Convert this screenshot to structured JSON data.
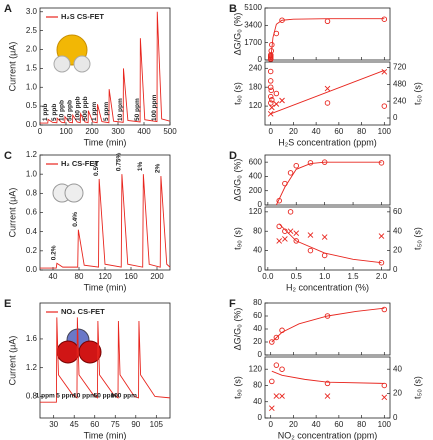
{
  "chart_data": [
    {
      "type": "line",
      "label": "A",
      "xlabel": "Time (min)",
      "ylabel": "Current (μA)",
      "xlim": [
        0,
        500
      ],
      "xticks": [
        0,
        100,
        200,
        300,
        400,
        500
      ],
      "ylim": [
        0,
        3.1
      ],
      "yticks": [
        {
          "value": 0,
          "label": "0.0"
        },
        {
          "value": 0.5,
          "label": "0.5"
        },
        {
          "value": 1,
          "label": "1.0"
        },
        {
          "value": 1.5,
          "label": "1.5"
        },
        {
          "value": 2,
          "label": "2.0"
        },
        {
          "value": 2.5,
          "label": "2.5"
        },
        {
          "value": 3,
          "label": "3.0"
        }
      ],
      "annotations": [
        "1 ppb",
        "5 ppb",
        "10 ppb",
        "50 ppb",
        "100 ppb",
        "500 ppb",
        "1 ppm",
        "5 ppm",
        "10 ppm",
        "50 ppm",
        "100 ppm"
      ],
      "series": [
        {
          "name": "H₂S CS-FET",
          "color": "#e8261f",
          "style": "line",
          "x": [
            0,
            30,
            31,
            48,
            65,
            66,
            83,
            95,
            96,
            113,
            125,
            126,
            143,
            155,
            156,
            173,
            185,
            186,
            203,
            220,
            221,
            238,
            265,
            266,
            283,
            320,
            321,
            338,
            385,
            386,
            403,
            450,
            451,
            468,
            500
          ],
          "values": [
            0.05,
            0.05,
            0.15,
            0.07,
            0.06,
            0.18,
            0.07,
            0.06,
            0.22,
            0.07,
            0.06,
            0.26,
            0.08,
            0.06,
            0.3,
            0.08,
            0.06,
            0.38,
            0.08,
            0.06,
            0.55,
            0.09,
            0.06,
            0.95,
            0.1,
            0.07,
            1.5,
            0.12,
            0.08,
            2.3,
            0.14,
            0.09,
            3.0,
            0.16,
            0.1
          ]
        }
      ]
    },
    {
      "type": "scatter",
      "label": "B",
      "ylabel": "ΔG/G₀ (%)",
      "xlim": [
        -5,
        105
      ],
      "xticks": [
        0,
        20,
        40,
        60,
        80,
        100
      ],
      "ylim": [
        0,
        5100
      ],
      "yticks": [
        0,
        1700,
        3400,
        5100
      ],
      "series": [
        {
          "color": "#e8261f",
          "style": "marker",
          "marker": "circle",
          "x": [
            0,
            0.001,
            0.005,
            0.01,
            0.05,
            0.1,
            0.5,
            1,
            5,
            10,
            50,
            100
          ],
          "values": [
            50,
            100,
            200,
            300,
            400,
            500,
            900,
            1500,
            2600,
            3900,
            3800,
            4000
          ]
        },
        {
          "color": "#e8261f",
          "style": "line",
          "x": [
            0,
            2,
            5,
            10,
            20,
            50,
            100
          ],
          "values": [
            0,
            2200,
            3500,
            3900,
            4000,
            4050,
            4050
          ]
        }
      ]
    },
    {
      "type": "scatter",
      "xlabel": "H₂S concentration (ppm)",
      "ylabel": "t₉₀ (s)",
      "y2label": "t₅₀ (s)",
      "xlim": [
        -5,
        105
      ],
      "xticks": [
        0,
        20,
        40,
        60,
        80,
        100
      ],
      "ylim": [
        60,
        260
      ],
      "yticks": [
        120,
        180,
        240
      ],
      "y2lim": [
        -100,
        800
      ],
      "y2ticks": [
        0,
        240,
        480,
        720
      ],
      "series": [
        {
          "color": "#e8261f",
          "style": "marker",
          "marker": "circle",
          "x": [
            0,
            0.005,
            0.01,
            0.05,
            0.1,
            0.5,
            1,
            5,
            50,
            100
          ],
          "values": [
            230,
            200,
            180,
            150,
            130,
            170,
            140,
            160,
            130,
            120
          ]
        },
        {
          "color": "#e8261f",
          "style": "marker",
          "marker": "cross",
          "axis": "y2",
          "x": [
            0,
            1,
            5,
            10,
            50,
            100
          ],
          "values": [
            60,
            150,
            200,
            250,
            420,
            660
          ]
        },
        {
          "color": "#e8261f",
          "style": "line",
          "axis": "y2",
          "x": [
            0,
            100
          ],
          "values": [
            60,
            680
          ]
        }
      ]
    },
    {
      "type": "line",
      "label": "C",
      "xlabel": "Time (min)",
      "ylabel": "Current (μA)",
      "xlim": [
        20,
        220
      ],
      "xticks": [
        40,
        80,
        120,
        160,
        200
      ],
      "ylim": [
        0,
        1.2
      ],
      "yticks": [
        {
          "value": 0,
          "label": "0.0"
        },
        0.2,
        0.4,
        0.6,
        0.8,
        {
          "value": 1,
          "label": "1.0"
        },
        1.2
      ],
      "annotations": [
        "0.2%",
        "0.4%",
        "0.5%",
        "0.75%",
        "1%",
        "2%"
      ],
      "series": [
        {
          "name": "H₂ CS-FET",
          "color": "#e8261f",
          "style": "line",
          "x": [
            20,
            45,
            46,
            55,
            78,
            79,
            88,
            110,
            111,
            120,
            145,
            146,
            155,
            178,
            179,
            188,
            205,
            206,
            215,
            220
          ],
          "values": [
            0.02,
            0.02,
            0.07,
            0.03,
            0.03,
            0.42,
            0.05,
            0.03,
            0.95,
            0.06,
            0.03,
            1.0,
            0.06,
            0.03,
            1.0,
            0.06,
            0.03,
            0.98,
            0.06,
            0.03
          ]
        }
      ]
    },
    {
      "type": "scatter",
      "label": "D",
      "ylabel": "ΔG/G₀ (%)",
      "xlim": [
        -0.05,
        2.15
      ],
      "xticks": [
        0,
        0.5,
        1,
        1.5,
        2
      ],
      "ylim": [
        0,
        700
      ],
      "yticks": [
        0,
        200,
        400,
        600
      ],
      "series": [
        {
          "color": "#e8261f",
          "style": "marker",
          "marker": "circle",
          "x": [
            0.2,
            0.3,
            0.4,
            0.5,
            0.75,
            1,
            2
          ],
          "values": [
            60,
            300,
            450,
            550,
            590,
            600,
            590
          ]
        },
        {
          "color": "#e8261f",
          "style": "line",
          "x": [
            0.15,
            0.3,
            0.5,
            0.75,
            1,
            1.5,
            2
          ],
          "values": [
            0,
            250,
            500,
            580,
            600,
            600,
            600
          ]
        }
      ]
    },
    {
      "type": "scatter",
      "xlabel": "H₂ concentration (%)",
      "ylabel": "t₉₀ (s)",
      "y2label": "t₅₀ (s)",
      "xlim": [
        -0.05,
        2.15
      ],
      "xticks": [
        {
          "value": 0,
          "label": "0.0"
        },
        {
          "value": 0.5,
          "label": "0.5"
        },
        {
          "value": 1,
          "label": "1.0"
        },
        {
          "value": 1.5,
          "label": "1.5"
        },
        {
          "value": 2,
          "label": "2.0"
        }
      ],
      "ylim": [
        0,
        130
      ],
      "yticks": [
        0,
        40,
        80,
        120
      ],
      "y2lim": [
        0,
        65
      ],
      "y2ticks": [
        0,
        20,
        40,
        60
      ],
      "series": [
        {
          "color": "#e8261f",
          "style": "marker",
          "marker": "circle",
          "x": [
            0.2,
            0.3,
            0.4,
            0.5,
            0.75,
            1,
            2
          ],
          "values": [
            90,
            80,
            120,
            60,
            40,
            30,
            15
          ]
        },
        {
          "color": "#e8261f",
          "style": "marker",
          "marker": "cross",
          "axis": "y2",
          "x": [
            0.2,
            0.3,
            0.4,
            0.5,
            0.75,
            1,
            2
          ],
          "values": [
            30,
            32,
            40,
            38,
            36,
            34,
            35
          ]
        },
        {
          "color": "#e8261f",
          "style": "line",
          "x": [
            0.2,
            0.5,
            1,
            1.5,
            2
          ],
          "values": [
            95,
            60,
            35,
            22,
            15
          ]
        }
      ]
    },
    {
      "type": "line",
      "label": "E",
      "xlabel": "Time (min)",
      "ylabel": "Current (μA)",
      "xlim": [
        20,
        115
      ],
      "xticks": [
        30,
        45,
        60,
        75,
        90,
        105
      ],
      "ylim": [
        0.5,
        2.1
      ],
      "yticks": [
        0.8,
        1.2,
        1.6
      ],
      "annotations": [
        "1 ppm",
        "5 ppm",
        "10 ppm",
        "50 ppm",
        "100 ppm"
      ],
      "series": [
        {
          "name": "NO₂ CS-FET",
          "color": "#e8261f",
          "style": "line",
          "x": [
            20,
            32,
            32.3,
            33.5,
            44,
            47,
            47.3,
            48.5,
            59,
            62,
            62.3,
            63.5,
            74,
            77,
            77.3,
            78.5,
            89,
            92,
            92.3,
            93.5,
            104,
            115
          ],
          "values": [
            0.72,
            0.72,
            1.9,
            1.1,
            0.82,
            0.78,
            1.9,
            1.1,
            0.82,
            0.78,
            1.85,
            1.1,
            0.82,
            0.78,
            1.85,
            1.1,
            0.8,
            0.78,
            1.85,
            1.1,
            0.8,
            0.78
          ]
        }
      ]
    },
    {
      "type": "scatter",
      "label": "F",
      "ylabel": "ΔG/G₀ (%)",
      "xlim": [
        -5,
        105
      ],
      "xticks": [
        0,
        20,
        40,
        60,
        80,
        100
      ],
      "ylim": [
        0,
        80
      ],
      "yticks": [
        0,
        20,
        40,
        60,
        80
      ],
      "series": [
        {
          "color": "#e8261f",
          "style": "marker",
          "marker": "circle",
          "x": [
            1,
            5,
            10,
            50,
            100
          ],
          "values": [
            20,
            27,
            38,
            60,
            70
          ]
        },
        {
          "color": "#e8261f",
          "style": "line",
          "x": [
            1,
            10,
            25,
            50,
            75,
            100
          ],
          "values": [
            20,
            35,
            48,
            60,
            67,
            72
          ]
        }
      ]
    },
    {
      "type": "scatter",
      "xlabel": "NO₂ concentration (ppm)",
      "ylabel": "t₉₀ (s)",
      "y2label": "t₅₀ (s)",
      "xlim": [
        -5,
        105
      ],
      "xticks": [
        0,
        20,
        40,
        60,
        80,
        100
      ],
      "ylim": [
        0,
        150
      ],
      "yticks": [
        0,
        40,
        80,
        120
      ],
      "y2lim": [
        0,
        50
      ],
      "y2ticks": [
        0,
        20,
        40
      ],
      "series": [
        {
          "color": "#e8261f",
          "style": "marker",
          "marker": "circle",
          "x": [
            1,
            5,
            10,
            50,
            100
          ],
          "values": [
            90,
            130,
            120,
            85,
            80
          ]
        },
        {
          "color": "#e8261f",
          "style": "marker",
          "marker": "cross",
          "axis": "y2",
          "x": [
            1,
            5,
            10,
            50,
            100
          ],
          "values": [
            8,
            18,
            18,
            18,
            17
          ]
        },
        {
          "color": "#e8261f",
          "style": "line",
          "x": [
            1,
            10,
            30,
            50,
            100
          ],
          "values": [
            115,
            105,
            95,
            88,
            85
          ]
        }
      ]
    }
  ]
}
